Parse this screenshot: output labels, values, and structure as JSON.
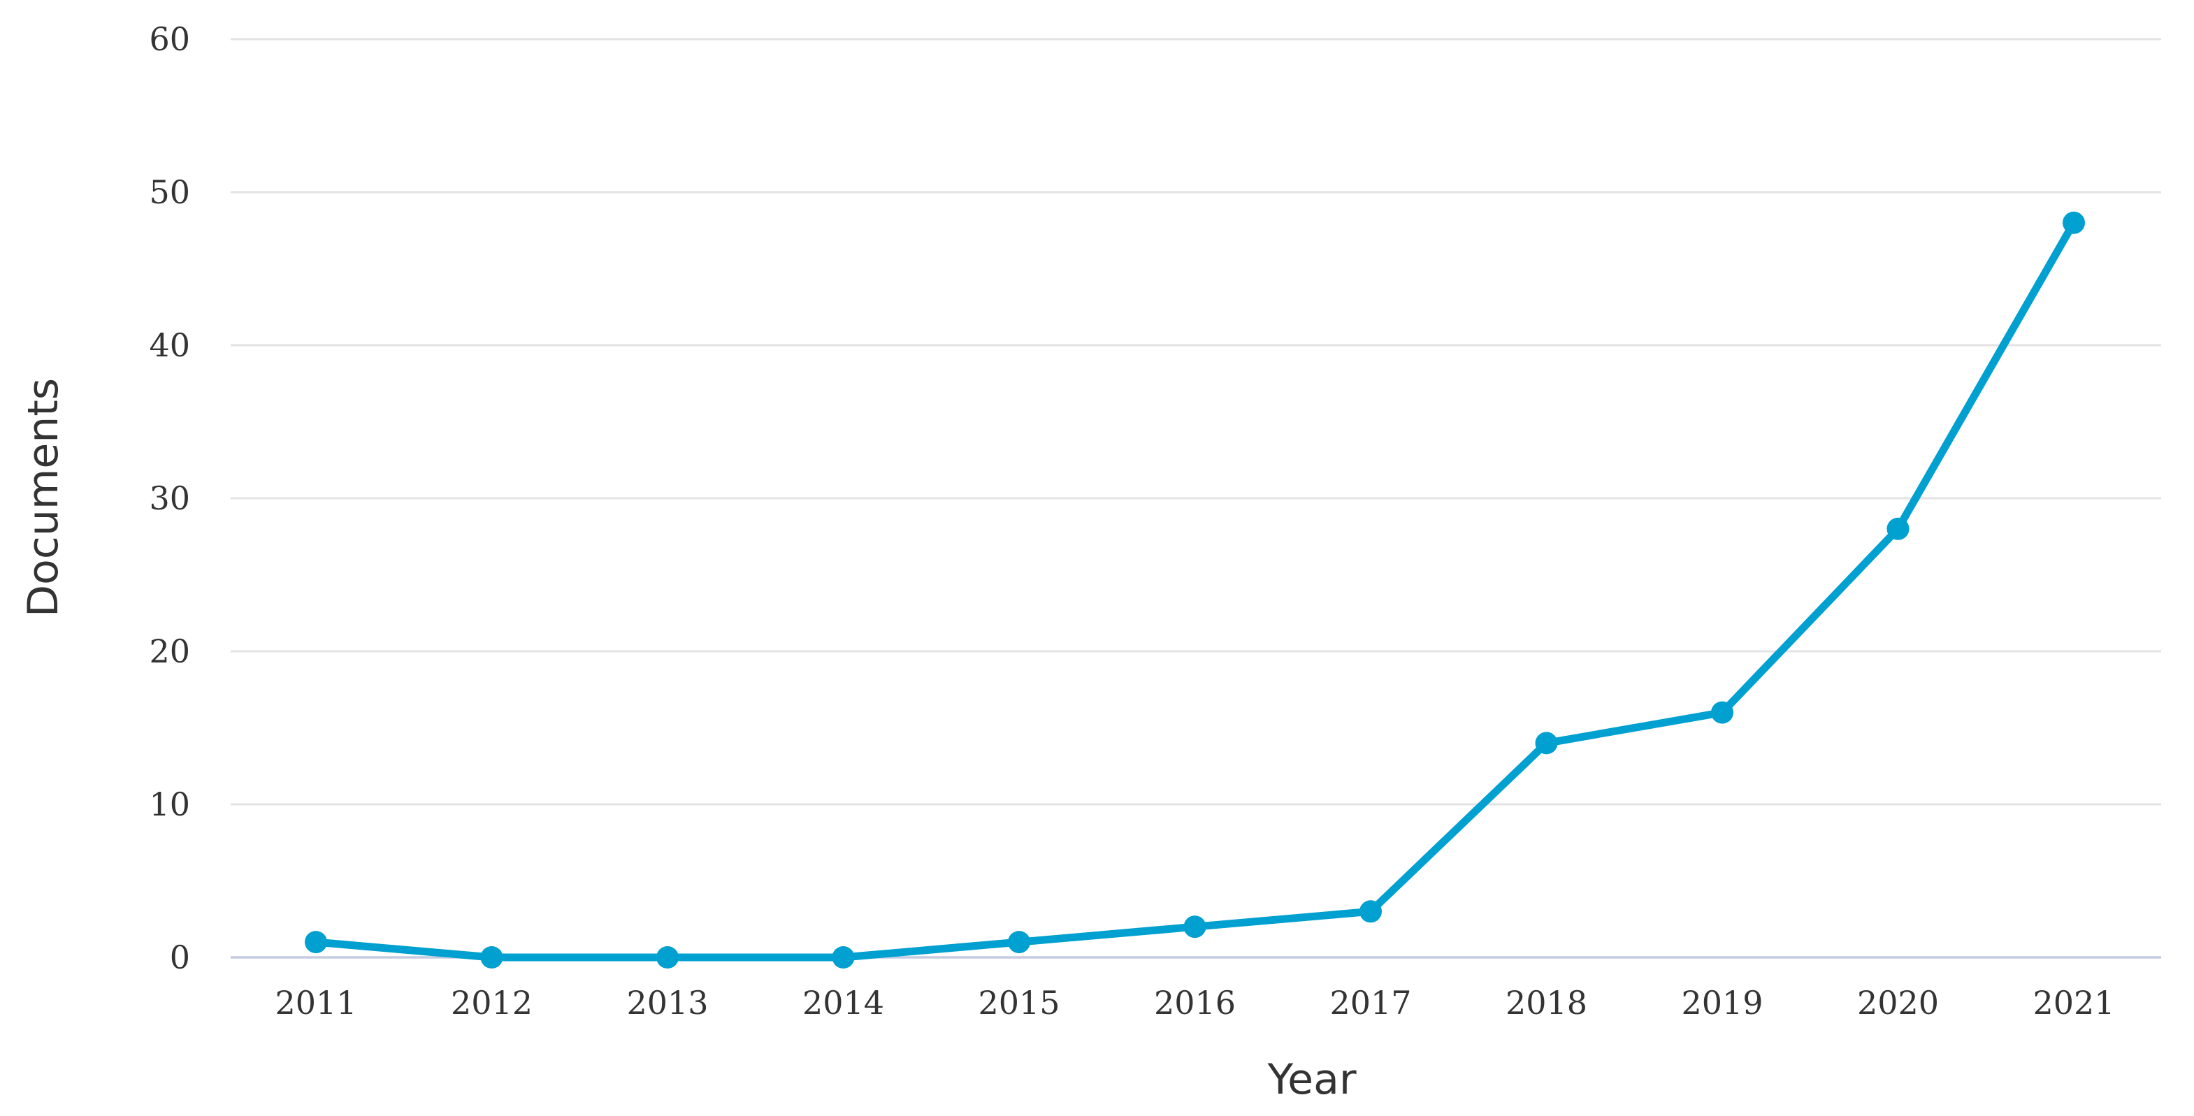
{
  "chart_data": {
    "type": "line",
    "title": "",
    "xlabel": "Year",
    "ylabel": "Documents",
    "categories": [
      "2011",
      "2012",
      "2013",
      "2014",
      "2015",
      "2016",
      "2017",
      "2018",
      "2019",
      "2020",
      "2021"
    ],
    "series": [
      {
        "values": [
          1,
          0,
          0,
          0,
          1,
          2,
          3,
          14,
          16,
          28,
          48
        ],
        "color": "#00a0d0"
      }
    ],
    "ylim": [
      0,
      60
    ],
    "yticks": [
      0,
      10,
      20,
      30,
      40,
      50,
      60
    ],
    "grid": true,
    "legend": "none"
  }
}
